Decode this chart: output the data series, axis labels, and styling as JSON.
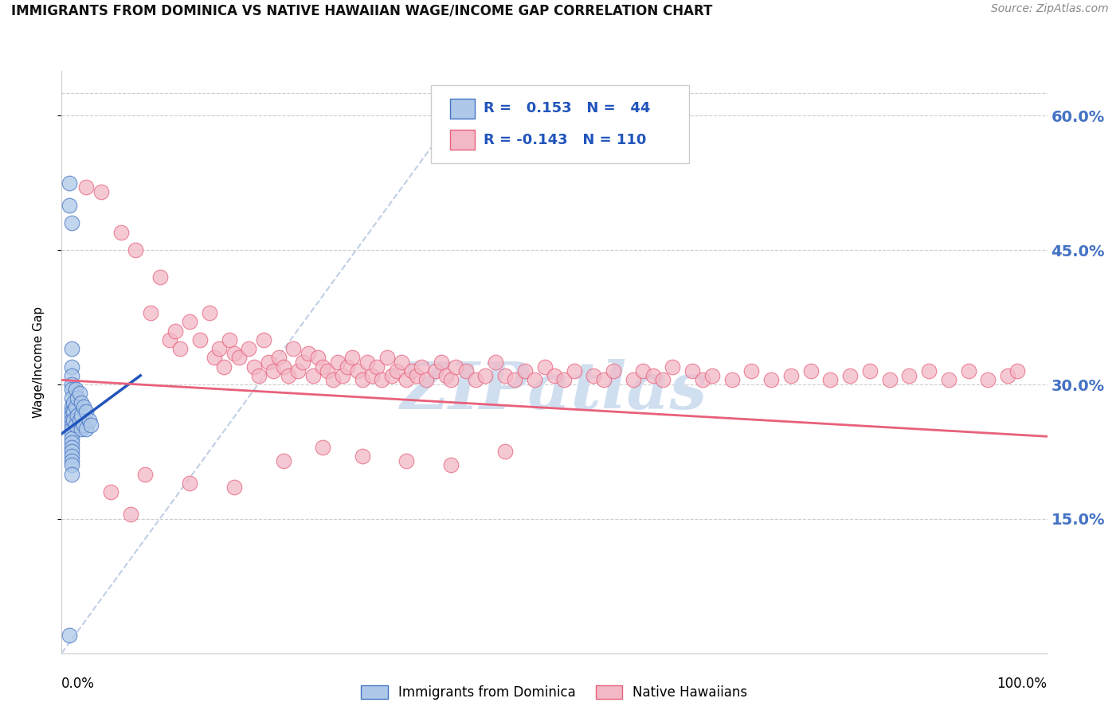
{
  "title": "IMMIGRANTS FROM DOMINICA VS NATIVE HAWAIIAN WAGE/INCOME GAP CORRELATION CHART",
  "source": "Source: ZipAtlas.com",
  "ylabel": "Wage/Income Gap",
  "ytick_labels": [
    "60.0%",
    "45.0%",
    "30.0%",
    "15.0%"
  ],
  "ytick_values": [
    0.6,
    0.45,
    0.3,
    0.15
  ],
  "xlim": [
    0.0,
    1.0
  ],
  "ylim": [
    0.0,
    0.65
  ],
  "r_blue": 0.153,
  "n_blue": 44,
  "r_pink": -0.143,
  "n_pink": 110,
  "legend_label_blue": "Immigrants from Dominica",
  "legend_label_pink": "Native Hawaiians",
  "blue_color": "#adc8e8",
  "blue_edge_color": "#4472c4",
  "pink_color": "#f2b8c6",
  "pink_edge_color": "#e8607a",
  "blue_line_color": "#2255bb",
  "pink_line_color": "#e8607a",
  "diag_color": "#b0c4de",
  "watermark_color": "#d0dff0",
  "blue_scatter_x": [
    0.008,
    0.008,
    0.01,
    0.01,
    0.01,
    0.01,
    0.01,
    0.01,
    0.01,
    0.01,
    0.01,
    0.01,
    0.01,
    0.01,
    0.01,
    0.01,
    0.01,
    0.01,
    0.01,
    0.01,
    0.01,
    0.01,
    0.01,
    0.01,
    0.012,
    0.012,
    0.012,
    0.014,
    0.014,
    0.014,
    0.016,
    0.016,
    0.018,
    0.018,
    0.02,
    0.02,
    0.02,
    0.022,
    0.022,
    0.025,
    0.025,
    0.028,
    0.03,
    0.008
  ],
  "blue_scatter_y": [
    0.525,
    0.5,
    0.48,
    0.34,
    0.32,
    0.31,
    0.3,
    0.295,
    0.285,
    0.275,
    0.27,
    0.265,
    0.26,
    0.255,
    0.25,
    0.245,
    0.24,
    0.235,
    0.23,
    0.225,
    0.22,
    0.215,
    0.21,
    0.2,
    0.28,
    0.27,
    0.26,
    0.295,
    0.275,
    0.255,
    0.285,
    0.265,
    0.29,
    0.26,
    0.28,
    0.265,
    0.25,
    0.275,
    0.255,
    0.27,
    0.25,
    0.26,
    0.255,
    0.02
  ],
  "pink_scatter_x": [
    0.025,
    0.04,
    0.06,
    0.075,
    0.09,
    0.1,
    0.11,
    0.115,
    0.12,
    0.13,
    0.14,
    0.15,
    0.155,
    0.16,
    0.165,
    0.17,
    0.175,
    0.18,
    0.19,
    0.195,
    0.2,
    0.205,
    0.21,
    0.215,
    0.22,
    0.225,
    0.23,
    0.235,
    0.24,
    0.245,
    0.25,
    0.255,
    0.26,
    0.265,
    0.27,
    0.275,
    0.28,
    0.285,
    0.29,
    0.295,
    0.3,
    0.305,
    0.31,
    0.315,
    0.32,
    0.325,
    0.33,
    0.335,
    0.34,
    0.345,
    0.35,
    0.355,
    0.36,
    0.365,
    0.37,
    0.38,
    0.385,
    0.39,
    0.395,
    0.4,
    0.41,
    0.42,
    0.43,
    0.44,
    0.45,
    0.46,
    0.47,
    0.48,
    0.49,
    0.5,
    0.51,
    0.52,
    0.54,
    0.55,
    0.56,
    0.58,
    0.59,
    0.6,
    0.61,
    0.62,
    0.64,
    0.65,
    0.66,
    0.68,
    0.7,
    0.72,
    0.74,
    0.76,
    0.78,
    0.8,
    0.82,
    0.84,
    0.86,
    0.88,
    0.9,
    0.92,
    0.94,
    0.96,
    0.97,
    0.05,
    0.07,
    0.085,
    0.13,
    0.175,
    0.225,
    0.265,
    0.305,
    0.35,
    0.395,
    0.45
  ],
  "pink_scatter_y": [
    0.52,
    0.515,
    0.47,
    0.45,
    0.38,
    0.42,
    0.35,
    0.36,
    0.34,
    0.37,
    0.35,
    0.38,
    0.33,
    0.34,
    0.32,
    0.35,
    0.335,
    0.33,
    0.34,
    0.32,
    0.31,
    0.35,
    0.325,
    0.315,
    0.33,
    0.32,
    0.31,
    0.34,
    0.315,
    0.325,
    0.335,
    0.31,
    0.33,
    0.32,
    0.315,
    0.305,
    0.325,
    0.31,
    0.32,
    0.33,
    0.315,
    0.305,
    0.325,
    0.31,
    0.32,
    0.305,
    0.33,
    0.31,
    0.315,
    0.325,
    0.305,
    0.315,
    0.31,
    0.32,
    0.305,
    0.315,
    0.325,
    0.31,
    0.305,
    0.32,
    0.315,
    0.305,
    0.31,
    0.325,
    0.31,
    0.305,
    0.315,
    0.305,
    0.32,
    0.31,
    0.305,
    0.315,
    0.31,
    0.305,
    0.315,
    0.305,
    0.315,
    0.31,
    0.305,
    0.32,
    0.315,
    0.305,
    0.31,
    0.305,
    0.315,
    0.305,
    0.31,
    0.315,
    0.305,
    0.31,
    0.315,
    0.305,
    0.31,
    0.315,
    0.305,
    0.315,
    0.305,
    0.31,
    0.315,
    0.18,
    0.155,
    0.2,
    0.19,
    0.185,
    0.215,
    0.23,
    0.22,
    0.215,
    0.21,
    0.225
  ],
  "pink_line_x": [
    0.0,
    1.0
  ],
  "pink_line_y": [
    0.305,
    0.242
  ],
  "blue_line_x": [
    0.0,
    0.08
  ],
  "blue_line_y": [
    0.245,
    0.31
  ],
  "diag_line_x": [
    0.0,
    0.415
  ],
  "diag_line_y": [
    0.0,
    0.625
  ]
}
